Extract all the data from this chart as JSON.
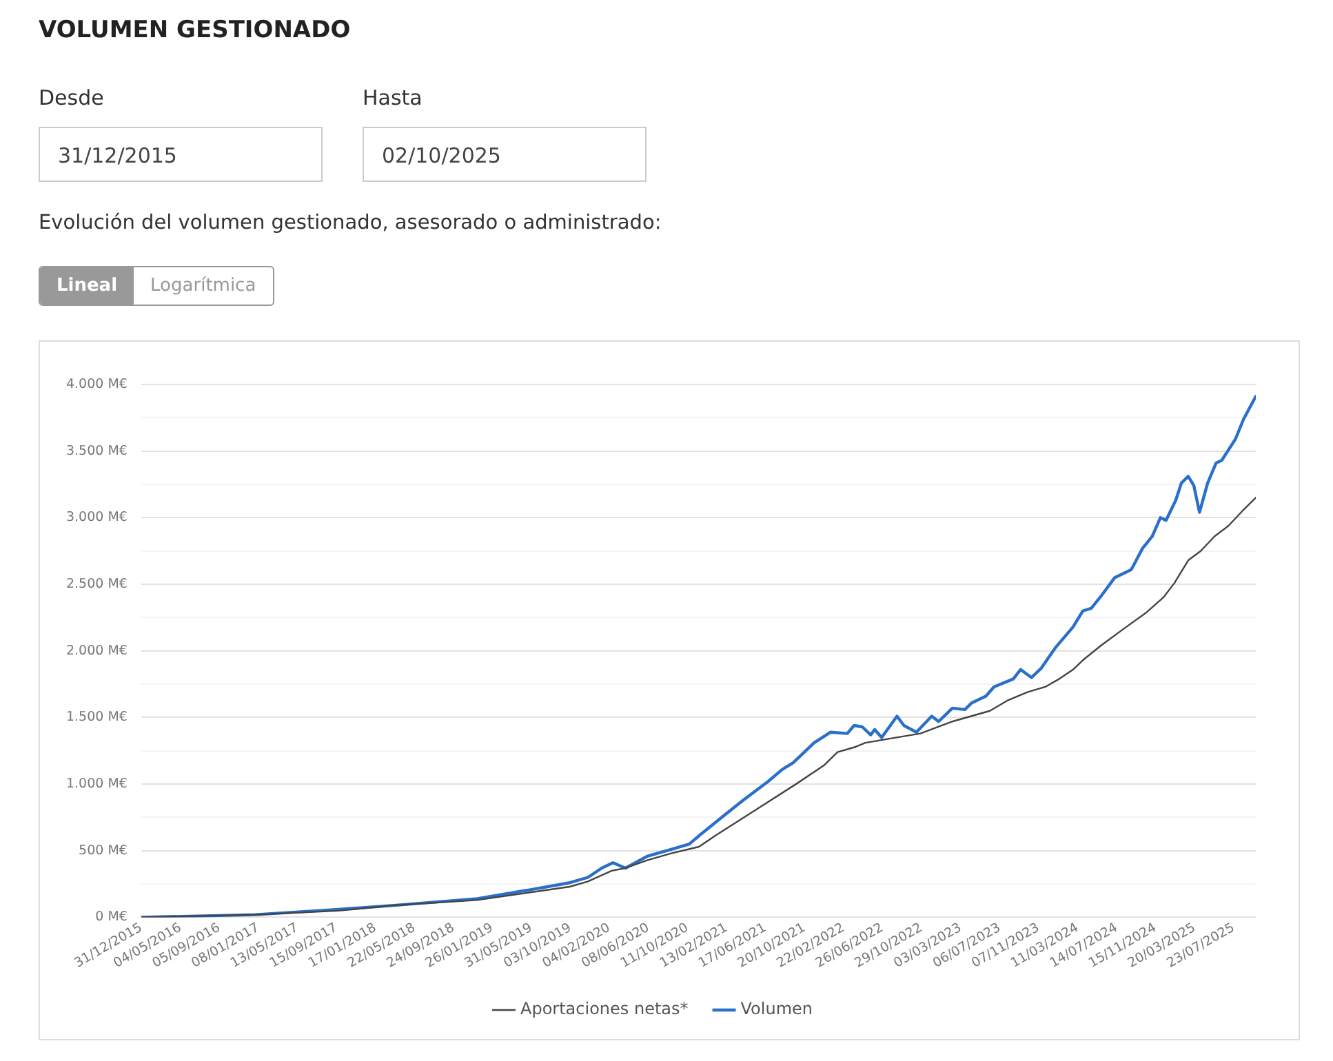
{
  "chart_data": {
    "type": "line",
    "title": "VOLUMEN GESTIONADO",
    "subtitle": "Evolución del volumen gestionado, asesorado o administrado:",
    "annotations": [
      "Desde",
      "31/12/2015",
      "Hasta",
      "02/10/2025",
      "Lineal",
      "Logarítmica"
    ],
    "xlim": [
      "2015-12-31",
      "2025-10-02"
    ],
    "xticks": [
      {
        "value": "2015-12-31",
        "label": "31/12/2015"
      },
      {
        "value": "2016-05-04",
        "label": "04/05/2016"
      },
      {
        "value": "2016-09-05",
        "label": "05/09/2016"
      },
      {
        "value": "2017-01-08",
        "label": "08/01/2017"
      },
      {
        "value": "2017-05-13",
        "label": "13/05/2017"
      },
      {
        "value": "2017-09-15",
        "label": "15/09/2017"
      },
      {
        "value": "2018-01-17",
        "label": "17/01/2018"
      },
      {
        "value": "2018-05-22",
        "label": "22/05/2018"
      },
      {
        "value": "2018-09-24",
        "label": "24/09/2018"
      },
      {
        "value": "2019-01-26",
        "label": "26/01/2019"
      },
      {
        "value": "2019-05-31",
        "label": "31/05/2019"
      },
      {
        "value": "2019-10-03",
        "label": "03/10/2019"
      },
      {
        "value": "2020-02-04",
        "label": "04/02/2020"
      },
      {
        "value": "2020-06-08",
        "label": "08/06/2020"
      },
      {
        "value": "2020-10-11",
        "label": "11/10/2020"
      },
      {
        "value": "2021-02-13",
        "label": "13/02/2021"
      },
      {
        "value": "2021-06-17",
        "label": "17/06/2021"
      },
      {
        "value": "2021-10-20",
        "label": "20/10/2021"
      },
      {
        "value": "2022-02-22",
        "label": "22/02/2022"
      },
      {
        "value": "2022-06-26",
        "label": "26/06/2022"
      },
      {
        "value": "2022-10-29",
        "label": "29/10/2022"
      },
      {
        "value": "2023-03-03",
        "label": "03/03/2023"
      },
      {
        "value": "2023-07-06",
        "label": "06/07/2023"
      },
      {
        "value": "2023-11-07",
        "label": "07/11/2023"
      },
      {
        "value": "2024-03-11",
        "label": "11/03/2024"
      },
      {
        "value": "2024-07-14",
        "label": "14/07/2024"
      },
      {
        "value": "2024-11-15",
        "label": "15/11/2024"
      },
      {
        "value": "2025-03-20",
        "label": "20/03/2025"
      },
      {
        "value": "2025-07-23",
        "label": "23/07/2025"
      }
    ],
    "ylim": [
      0,
      4000
    ],
    "yticks": [
      {
        "value": 0,
        "label": "0 M€"
      },
      {
        "value": 250,
        "label": null
      },
      {
        "value": 500,
        "label": "500 M€"
      },
      {
        "value": 750,
        "label": null
      },
      {
        "value": 1000,
        "label": "1.000 M€"
      },
      {
        "value": 1250,
        "label": null
      },
      {
        "value": 1500,
        "label": "1.500 M€"
      },
      {
        "value": 1750,
        "label": null
      },
      {
        "value": 2000,
        "label": "2.000 M€"
      },
      {
        "value": 2250,
        "label": null
      },
      {
        "value": 2500,
        "label": "2.500 M€"
      },
      {
        "value": 2750,
        "label": null
      },
      {
        "value": 3000,
        "label": "3.000 M€"
      },
      {
        "value": 3250,
        "label": null
      },
      {
        "value": 3500,
        "label": "3.500 M€"
      },
      {
        "value": 3750,
        "label": null
      },
      {
        "value": 4000,
        "label": "4.000 M€"
      }
    ],
    "grid": "y",
    "legend": "bottom",
    "marker": "none",
    "line_style": "solid",
    "series": [
      {
        "name": "Volumen",
        "color": "#2a6fca",
        "x": [
          "2015-12-31",
          "2016-12-29",
          "2017-09-22",
          "2018-03-18",
          "2018-12-09",
          "2019-06-04",
          "2019-10-01",
          "2019-11-28",
          "2020-01-11",
          "2020-02-16",
          "2020-03-27",
          "2020-06-06",
          "2020-08-20",
          "2020-10-17",
          "2020-11-26",
          "2021-02-13",
          "2021-04-08",
          "2021-06-26",
          "2021-08-10",
          "2021-09-14",
          "2021-11-20",
          "2022-01-12",
          "2022-03-06",
          "2022-03-28",
          "2022-04-23",
          "2022-05-20",
          "2022-06-02",
          "2022-06-24",
          "2022-08-12",
          "2022-09-03",
          "2022-10-13",
          "2022-12-01",
          "2022-12-23",
          "2023-02-05",
          "2023-03-17",
          "2023-04-08",
          "2023-05-23",
          "2023-06-18",
          "2023-08-19",
          "2023-09-11",
          "2023-10-16",
          "2023-11-16",
          "2023-12-30",
          "2024-02-26",
          "2024-03-28",
          "2024-04-24",
          "2024-05-25",
          "2024-07-08",
          "2024-08-30",
          "2024-10-05",
          "2024-11-05",
          "2024-12-01",
          "2024-12-19",
          "2025-01-19",
          "2025-02-06",
          "2025-02-28",
          "2025-03-18",
          "2025-04-05",
          "2025-05-01",
          "2025-05-28",
          "2025-06-15",
          "2025-07-29",
          "2025-08-24",
          "2025-10-02"
        ],
        "values": [
          0,
          20,
          60,
          90,
          140,
          210,
          260,
          300,
          370,
          410,
          370,
          460,
          510,
          550,
          630,
          780,
          880,
          1020,
          1110,
          1160,
          1310,
          1390,
          1380,
          1440,
          1430,
          1370,
          1410,
          1350,
          1510,
          1440,
          1390,
          1510,
          1470,
          1570,
          1560,
          1610,
          1660,
          1730,
          1790,
          1860,
          1800,
          1870,
          2020,
          2180,
          2300,
          2320,
          2410,
          2550,
          2610,
          2770,
          2860,
          3000,
          2980,
          3130,
          3260,
          3310,
          3240,
          3040,
          3260,
          3410,
          3430,
          3590,
          3740,
          3910
        ]
      },
      {
        "name": "Aportaciones netas*",
        "color": "#444444",
        "x": [
          "2015-12-31",
          "2016-12-29",
          "2017-09-22",
          "2018-03-18",
          "2018-12-09",
          "2019-06-04",
          "2019-10-01",
          "2019-11-28",
          "2020-02-12",
          "2020-03-27",
          "2020-06-06",
          "2020-08-20",
          "2020-11-17",
          "2021-01-13",
          "2021-05-13",
          "2021-09-23",
          "2021-12-21",
          "2022-02-03",
          "2022-04-02",
          "2022-05-03",
          "2022-07-16",
          "2022-10-26",
          "2023-02-05",
          "2023-06-05",
          "2023-08-02",
          "2023-10-03",
          "2023-11-29",
          "2024-01-13",
          "2024-02-26",
          "2024-03-28",
          "2024-05-25",
          "2024-08-08",
          "2024-10-18",
          "2024-12-10",
          "2025-01-15",
          "2025-02-28",
          "2025-04-09",
          "2025-05-23",
          "2025-07-07",
          "2025-08-20",
          "2025-10-02"
        ],
        "values": [
          0,
          20,
          50,
          90,
          130,
          190,
          230,
          270,
          350,
          370,
          430,
          480,
          530,
          620,
          800,
          1000,
          1140,
          1240,
          1280,
          1310,
          1340,
          1380,
          1470,
          1550,
          1630,
          1690,
          1730,
          1790,
          1860,
          1930,
          2040,
          2170,
          2290,
          2400,
          2510,
          2680,
          2750,
          2860,
          2940,
          3050,
          3150
        ]
      }
    ]
  }
}
